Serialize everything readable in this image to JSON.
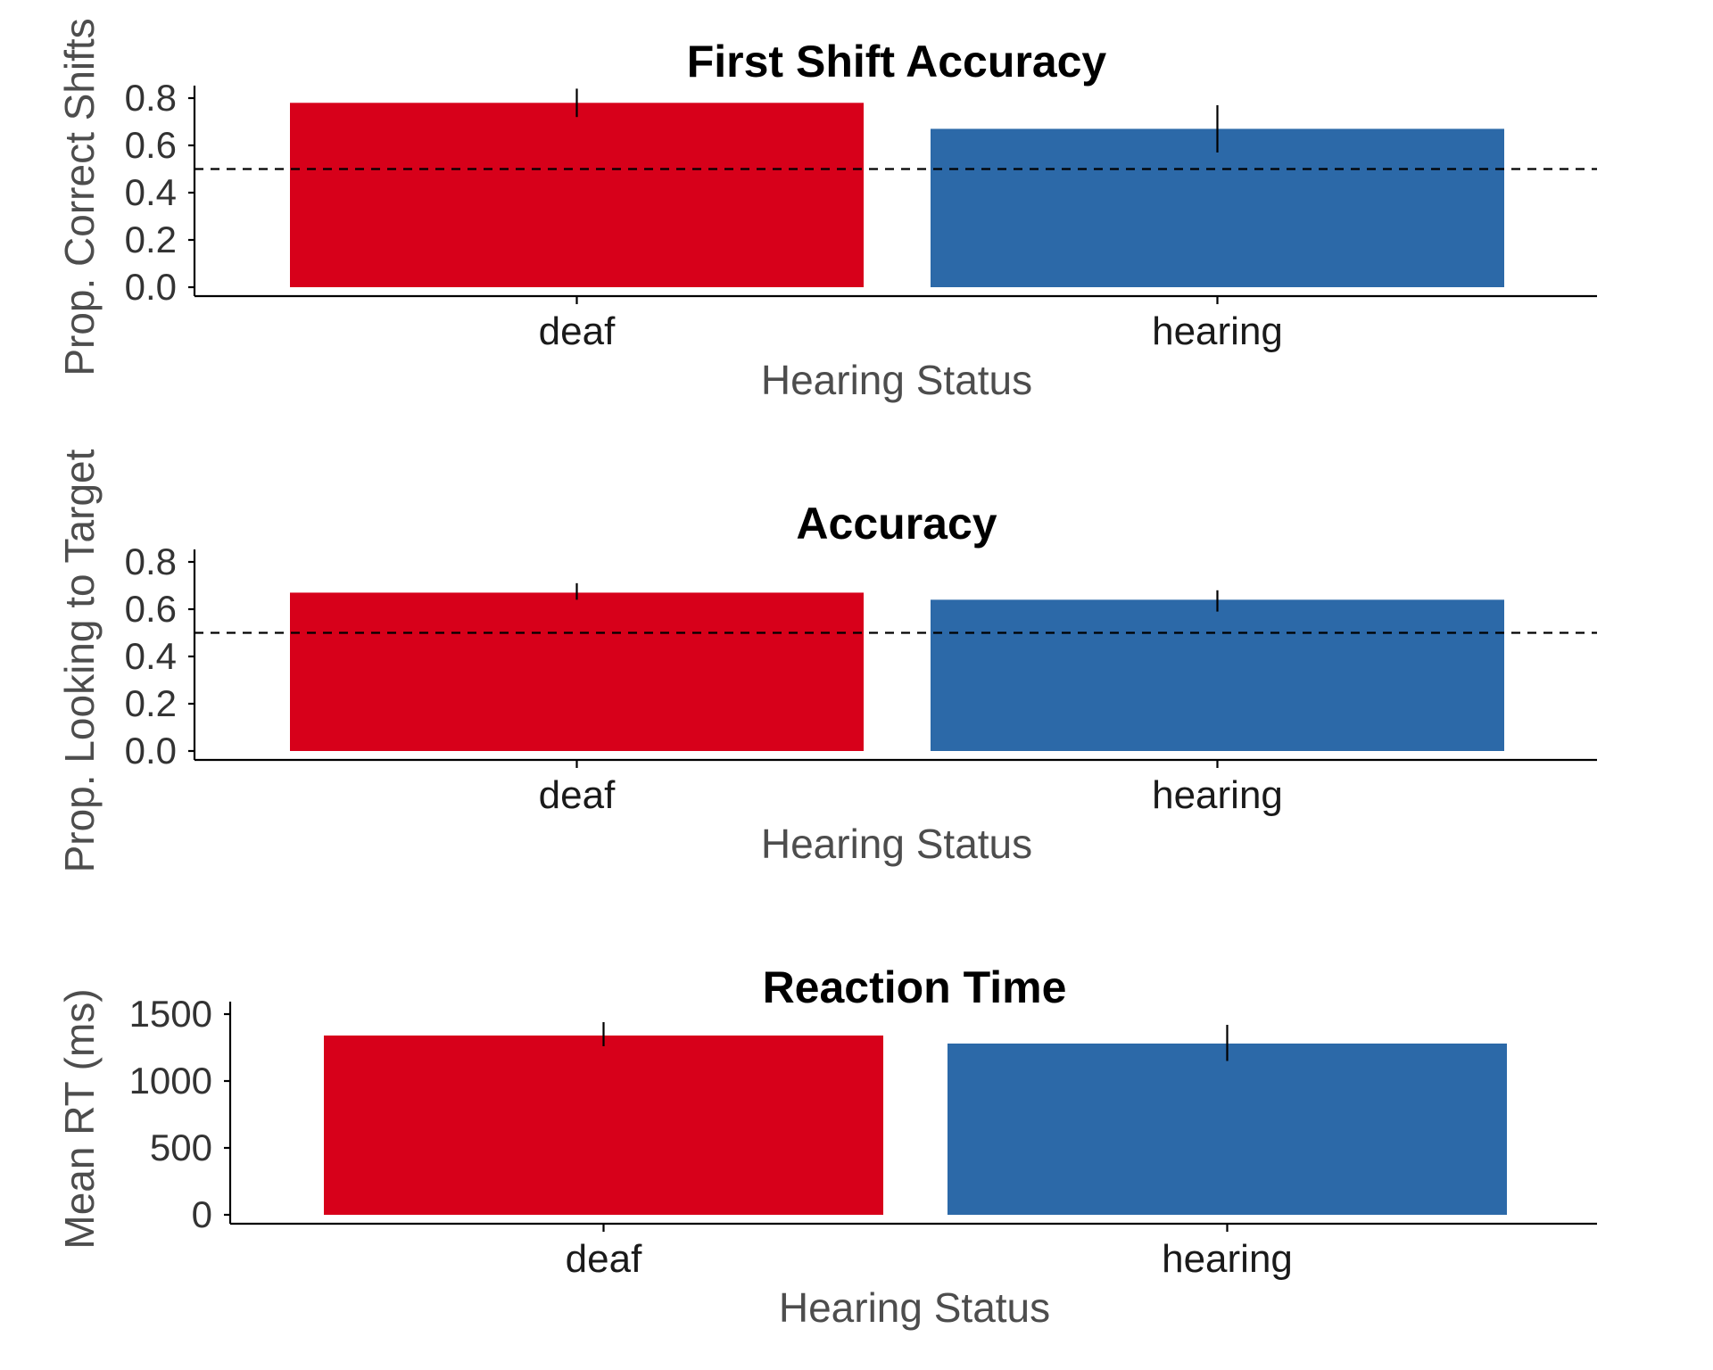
{
  "colors": {
    "deaf": "#d7001a",
    "hearing": "#2c69a8",
    "axis": "#000000",
    "refline": "#000000"
  },
  "chart_data": [
    {
      "type": "bar",
      "title": "First Shift Accuracy",
      "xlabel": "Hearing Status",
      "ylabel": "Prop. Correct Shifts",
      "categories": [
        "deaf",
        "hearing"
      ],
      "values": [
        0.78,
        0.67
      ],
      "error_low": [
        0.72,
        0.57
      ],
      "error_high": [
        0.84,
        0.77
      ],
      "ylim": [
        0,
        0.8
      ],
      "yticks": [
        0,
        0.2,
        0.4,
        0.6,
        0.8
      ],
      "ytick_labels": [
        "0.0",
        "0.2",
        "0.4",
        "0.6",
        "0.8"
      ],
      "reference_line": 0.5,
      "grid": false
    },
    {
      "type": "bar",
      "title": "Accuracy",
      "xlabel": "Hearing Status",
      "ylabel": "Prop. Looking to Target",
      "categories": [
        "deaf",
        "hearing"
      ],
      "values": [
        0.67,
        0.64
      ],
      "error_low": [
        0.64,
        0.59
      ],
      "error_high": [
        0.71,
        0.68
      ],
      "ylim": [
        0,
        0.8
      ],
      "yticks": [
        0,
        0.2,
        0.4,
        0.6,
        0.8
      ],
      "ytick_labels": [
        "0.0",
        "0.2",
        "0.4",
        "0.6",
        "0.8"
      ],
      "reference_line": 0.5,
      "grid": false
    },
    {
      "type": "bar",
      "title": "Reaction Time",
      "xlabel": "Hearing Status",
      "ylabel": "Mean RT (ms)",
      "categories": [
        "deaf",
        "hearing"
      ],
      "values": [
        1340,
        1280
      ],
      "error_low": [
        1260,
        1150
      ],
      "error_high": [
        1440,
        1420
      ],
      "ylim": [
        0,
        1500
      ],
      "yticks": [
        0,
        500,
        1000,
        1500
      ],
      "ytick_labels": [
        "0",
        "500",
        "1000",
        "1500"
      ],
      "reference_line": null,
      "grid": false
    }
  ]
}
